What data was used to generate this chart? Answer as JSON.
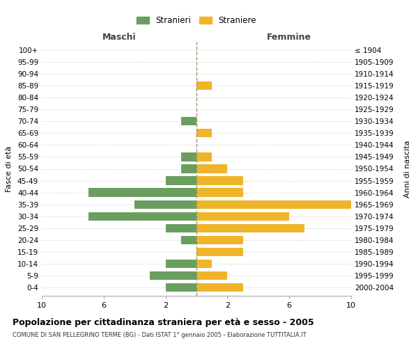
{
  "age_groups": [
    "0-4",
    "5-9",
    "10-14",
    "15-19",
    "20-24",
    "25-29",
    "30-34",
    "35-39",
    "40-44",
    "45-49",
    "50-54",
    "55-59",
    "60-64",
    "65-69",
    "70-74",
    "75-79",
    "80-84",
    "85-89",
    "90-94",
    "95-99",
    "100+"
  ],
  "birth_years": [
    "2000-2004",
    "1995-1999",
    "1990-1994",
    "1985-1989",
    "1980-1984",
    "1975-1979",
    "1970-1974",
    "1965-1969",
    "1960-1964",
    "1955-1959",
    "1950-1954",
    "1945-1949",
    "1940-1944",
    "1935-1939",
    "1930-1934",
    "1925-1929",
    "1920-1924",
    "1915-1919",
    "1910-1914",
    "1905-1909",
    "≤ 1904"
  ],
  "males": [
    2,
    3,
    2,
    0,
    1,
    2,
    7,
    4,
    7,
    2,
    1,
    1,
    0,
    0,
    1,
    0,
    0,
    0,
    0,
    0,
    0
  ],
  "females": [
    3,
    2,
    1,
    3,
    3,
    7,
    6,
    10,
    3,
    3,
    2,
    1,
    0,
    1,
    0,
    0,
    0,
    1,
    0,
    0,
    0
  ],
  "male_color": "#6a9e5f",
  "female_color": "#f0b429",
  "center_line_color": "#999966",
  "background_color": "#ffffff",
  "grid_color": "#cccccc",
  "xlim": 10,
  "xtick_labels": [
    "10",
    "6",
    "2",
    "2",
    "6",
    "10"
  ],
  "xtick_positions": [
    -10,
    -6,
    -2,
    2,
    6,
    10
  ],
  "title": "Popolazione per cittadinanza straniera per età e sesso - 2005",
  "subtitle": "COMUNE DI SAN PELLEGRINO TERME (BG) - Dati ISTAT 1° gennaio 2005 - Elaborazione TUTTITALIA.IT",
  "ylabel_left": "Fasce di età",
  "ylabel_right": "Anni di nascita",
  "label_males": "Stranieri",
  "label_females": "Straniere",
  "maschi_label": "Maschi",
  "femmine_label": "Femmine"
}
